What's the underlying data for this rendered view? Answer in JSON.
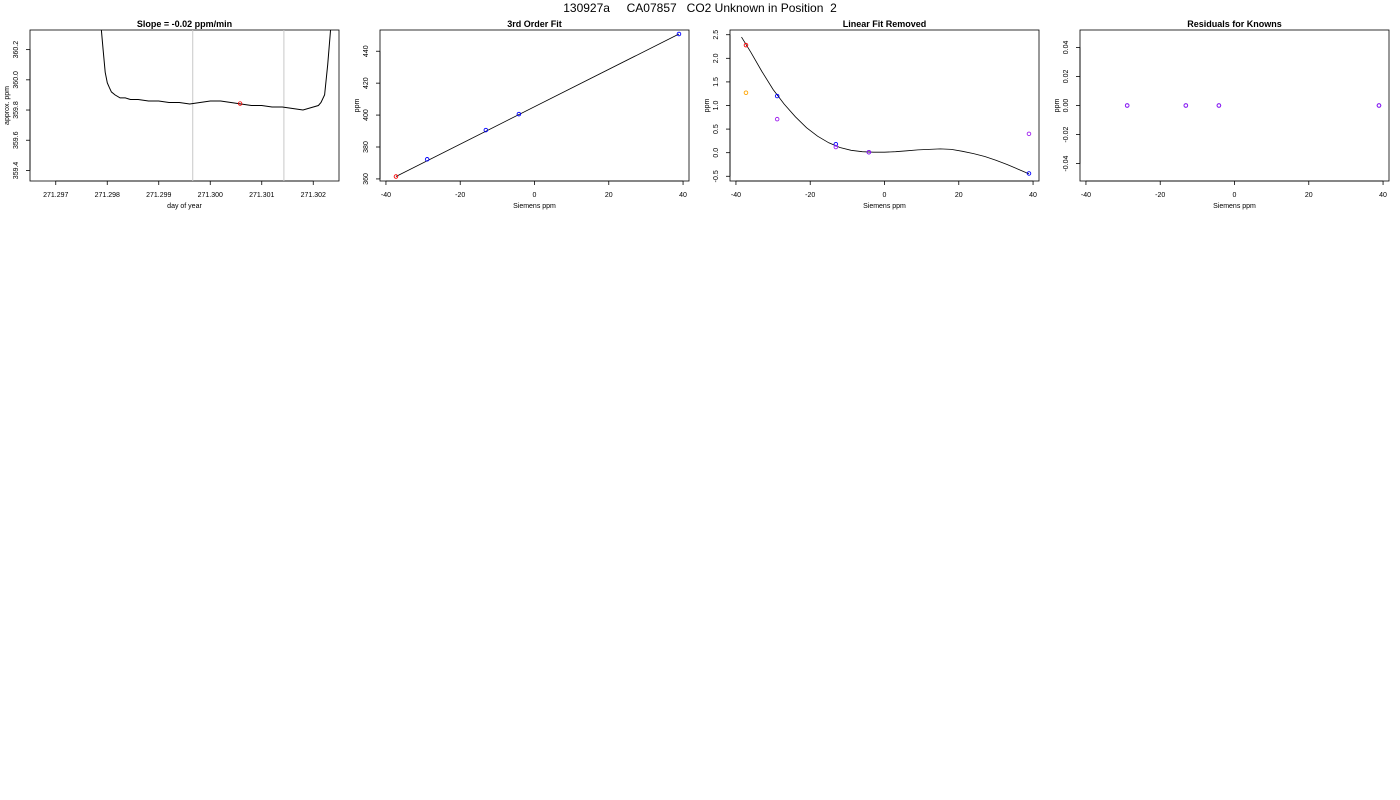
{
  "page": {
    "title": "130927a     CA07857   CO2 Unknown in Position  2"
  },
  "colors": {
    "line": "#000000",
    "vline": "#c8c8c8",
    "blue": "#0000ff",
    "red": "#ff0000",
    "purple": "#a020f0",
    "orange": "#ffa500"
  },
  "chart_data": [
    {
      "id": "slope",
      "type": "line",
      "title": "Slope =   -0.02  ppm/min",
      "xlabel": "day of year",
      "ylabel": "approx. ppm",
      "xlim": [
        271.2965,
        271.3025
      ],
      "ylim": [
        359.33,
        360.33
      ],
      "xticks": [
        {
          "v": 271.297,
          "label": "271.297"
        },
        {
          "v": 271.298,
          "label": "271.298"
        },
        {
          "v": 271.299,
          "label": "271.299"
        },
        {
          "v": 271.3,
          "label": "271.300"
        },
        {
          "v": 271.301,
          "label": "271.301"
        },
        {
          "v": 271.302,
          "label": "271.302"
        }
      ],
      "yticks": [
        {
          "v": 359.4,
          "label": "359.4"
        },
        {
          "v": 359.6,
          "label": "359.6"
        },
        {
          "v": 359.8,
          "label": "359.8"
        },
        {
          "v": 360.0,
          "label": "360.0"
        },
        {
          "v": 360.2,
          "label": "360.2"
        }
      ],
      "vlines": [
        271.29966,
        271.30143
      ],
      "series": [
        {
          "x": [
            271.29788,
            271.29792,
            271.29796,
            271.298,
            271.29804,
            271.29808,
            271.29815,
            271.29825,
            271.29835,
            271.29845,
            271.2986,
            271.2988,
            271.299,
            271.2992,
            271.2994,
            271.2996,
            271.2998,
            271.3,
            271.3002,
            271.3004,
            271.3006,
            271.3008,
            271.301,
            271.3012,
            271.3014,
            271.3016,
            271.3018,
            271.302,
            271.3021,
            271.30215,
            271.30222,
            271.30228,
            271.30234
          ],
          "y": [
            360.35,
            360.2,
            360.05,
            359.98,
            359.95,
            359.92,
            359.9,
            359.88,
            359.88,
            359.87,
            359.87,
            359.86,
            359.86,
            359.85,
            359.85,
            359.84,
            359.85,
            359.86,
            359.86,
            359.85,
            359.84,
            359.83,
            359.83,
            359.82,
            359.82,
            359.81,
            359.8,
            359.82,
            359.83,
            359.85,
            359.9,
            360.1,
            360.35
          ]
        }
      ],
      "markers": [
        {
          "x": 271.30058,
          "y": 359.843,
          "color": "red"
        }
      ]
    },
    {
      "id": "fit",
      "type": "scatter",
      "title": "3rd Order Fit",
      "xlabel": "Siemens ppm",
      "ylabel": "ppm",
      "xlim": [
        -41.6,
        41.6
      ],
      "ylim": [
        358.7,
        453.3
      ],
      "xticks": [
        {
          "v": -40,
          "label": "-40"
        },
        {
          "v": -20,
          "label": "-20"
        },
        {
          "v": 0,
          "label": "0"
        },
        {
          "v": 20,
          "label": "20"
        },
        {
          "v": 40,
          "label": "40"
        }
      ],
      "yticks": [
        {
          "v": 360,
          "label": "360"
        },
        {
          "v": 380,
          "label": "380"
        },
        {
          "v": 400,
          "label": "400"
        },
        {
          "v": 420,
          "label": "420"
        },
        {
          "v": 440,
          "label": "440"
        }
      ],
      "line": {
        "x": [
          -37.3,
          38.9
        ],
        "y": [
          361.5,
          450.8
        ]
      },
      "points": [
        {
          "x": -28.9,
          "y": 372.3,
          "color": "blue"
        },
        {
          "x": -13.1,
          "y": 390.6,
          "color": "blue"
        },
        {
          "x": -4.2,
          "y": 400.6,
          "color": "blue"
        },
        {
          "x": 38.9,
          "y": 450.8,
          "color": "blue"
        },
        {
          "x": -37.3,
          "y": 361.5,
          "color": "red"
        }
      ]
    },
    {
      "id": "linear",
      "type": "scatter",
      "title": "Linear Fit Removed",
      "xlabel": "Siemens ppm",
      "ylabel": "ppm",
      "xlim": [
        -41.6,
        41.6
      ],
      "ylim": [
        -0.6,
        2.6
      ],
      "xticks": [
        {
          "v": -40,
          "label": "-40"
        },
        {
          "v": -20,
          "label": "-20"
        },
        {
          "v": 0,
          "label": "0"
        },
        {
          "v": 20,
          "label": "20"
        },
        {
          "v": 40,
          "label": "40"
        }
      ],
      "yticks": [
        {
          "v": -0.5,
          "label": "-0.5"
        },
        {
          "v": 0.0,
          "label": "0.0"
        },
        {
          "v": 0.5,
          "label": "0.5"
        },
        {
          "v": 1.0,
          "label": "1.0"
        },
        {
          "v": 1.5,
          "label": "1.5"
        },
        {
          "v": 2.0,
          "label": "2.0"
        },
        {
          "v": 2.5,
          "label": "2.5"
        }
      ],
      "curve": {
        "x": [
          -38.5,
          -36,
          -33,
          -30,
          -27,
          -24,
          -21,
          -18,
          -15,
          -12,
          -9,
          -6,
          -3,
          0,
          3,
          6,
          9,
          12,
          15,
          18,
          21,
          24,
          27,
          30,
          33,
          36,
          38.9
        ],
        "y": [
          2.45,
          2.13,
          1.72,
          1.34,
          1.03,
          0.76,
          0.53,
          0.35,
          0.21,
          0.11,
          0.05,
          0.02,
          0.01,
          0.01,
          0.02,
          0.04,
          0.06,
          0.07,
          0.08,
          0.07,
          0.03,
          -0.02,
          -0.08,
          -0.16,
          -0.25,
          -0.35,
          -0.45
        ]
      },
      "points": [
        {
          "x": -37.3,
          "y": 2.28,
          "color": "red"
        },
        {
          "x": -37.3,
          "y": 1.27,
          "color": "orange"
        },
        {
          "x": -28.9,
          "y": 1.2,
          "color": "blue"
        },
        {
          "x": -28.9,
          "y": 0.71,
          "color": "purple"
        },
        {
          "x": -13.1,
          "y": 0.18,
          "color": "blue"
        },
        {
          "x": -13.1,
          "y": 0.12,
          "color": "purple"
        },
        {
          "x": -4.2,
          "y": 0.01,
          "color": "blue"
        },
        {
          "x": -4.2,
          "y": 0.01,
          "color": "purple"
        },
        {
          "x": 38.9,
          "y": 0.4,
          "color": "purple"
        },
        {
          "x": 38.9,
          "y": -0.44,
          "color": "blue"
        }
      ]
    },
    {
      "id": "residuals",
      "type": "scatter",
      "title": "Residuals for Knowns",
      "xlabel": "Siemens ppm",
      "ylabel": "ppm",
      "xlim": [
        -41.6,
        41.6
      ],
      "ylim": [
        -0.052,
        0.052
      ],
      "xticks": [
        {
          "v": -40,
          "label": "-40"
        },
        {
          "v": -20,
          "label": "-20"
        },
        {
          "v": 0,
          "label": "0"
        },
        {
          "v": 20,
          "label": "20"
        },
        {
          "v": 40,
          "label": "40"
        }
      ],
      "yticks": [
        {
          "v": -0.04,
          "label": "-0.04"
        },
        {
          "v": -0.02,
          "label": "-0.02"
        },
        {
          "v": 0.0,
          "label": "0.00"
        },
        {
          "v": 0.02,
          "label": "0.02"
        },
        {
          "v": 0.04,
          "label": "0.04"
        }
      ],
      "points": [
        {
          "x": -28.9,
          "y": 0.0,
          "color": "blue"
        },
        {
          "x": -28.9,
          "y": 0.0,
          "color": "purple"
        },
        {
          "x": -13.1,
          "y": 0.0,
          "color": "blue"
        },
        {
          "x": -13.1,
          "y": 0.0,
          "color": "purple"
        },
        {
          "x": -4.2,
          "y": 0.0,
          "color": "blue"
        },
        {
          "x": -4.2,
          "y": 0.0,
          "color": "purple"
        },
        {
          "x": 38.9,
          "y": 0.0,
          "color": "blue"
        },
        {
          "x": 38.9,
          "y": 0.0,
          "color": "purple"
        }
      ]
    }
  ]
}
